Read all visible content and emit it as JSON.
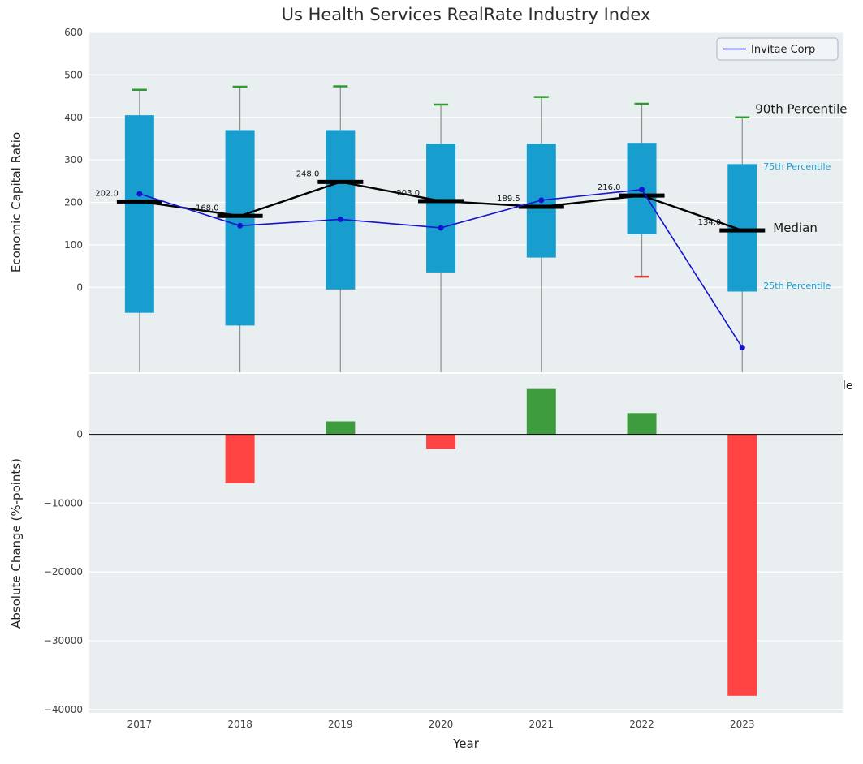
{
  "title": "Us Health Services RealRate Industry Index",
  "legend": {
    "label": "Invitae Corp"
  },
  "partial_text": "le",
  "colors": {
    "panel_bg": "#e9eef1",
    "grid": "#ffffff",
    "box_fill": "#189dcf",
    "whisker": "#8f8f8f",
    "cap_high": "#2e9b2e",
    "cap_low": "#e23b3b",
    "median": "#000000",
    "line": "#1414cc",
    "bar_pos": "#3e9c3e",
    "bar_neg": "#ff4242",
    "tick_text": "#404040",
    "annot_blue": "#1a9fd1",
    "annot_black": "#1a1a1a"
  },
  "chart_data": [
    {
      "type": "boxplot+line",
      "title": "Us Health Services RealRate Industry Index",
      "ylabel": "Economic Capital Ratio",
      "x": [
        2017,
        2018,
        2019,
        2020,
        2021,
        2022,
        2023
      ],
      "xlim": [
        2016.5,
        2024.0
      ],
      "ylim": [
        -200,
        600
      ],
      "yticks": [
        "600",
        "500",
        "400",
        "300",
        "200",
        "100",
        "0"
      ],
      "ytick_values": [
        600,
        500,
        400,
        300,
        200,
        100,
        0
      ],
      "boxes": [
        {
          "year": 2017,
          "p25": -60,
          "p75": 405,
          "median": 202.0,
          "p90": 465,
          "p10": null,
          "label": "202.0"
        },
        {
          "year": 2018,
          "p25": -90,
          "p75": 370,
          "median": 168.0,
          "p90": 472,
          "p10": null,
          "label": "168.0"
        },
        {
          "year": 2019,
          "p25": -5,
          "p75": 370,
          "median": 248.0,
          "p90": 473,
          "p10": null,
          "label": "248.0"
        },
        {
          "year": 2020,
          "p25": 35,
          "p75": 338,
          "median": 203.0,
          "p90": 430,
          "p10": null,
          "label": "203.0"
        },
        {
          "year": 2021,
          "p25": 70,
          "p75": 338,
          "median": 189.5,
          "p90": 448,
          "p10": null,
          "label": "189.5"
        },
        {
          "year": 2022,
          "p25": 125,
          "p75": 340,
          "median": 216.0,
          "p90": 432,
          "p10": 25,
          "label": "216.0"
        },
        {
          "year": 2023,
          "p25": -10,
          "p75": 290,
          "median": 134.0,
          "p90": 400,
          "p10": null,
          "label": "134.0"
        }
      ],
      "series": [
        {
          "name": "Invitae Corp",
          "values": [
            220,
            145,
            160,
            140,
            205,
            230,
            -142
          ]
        }
      ],
      "annotations": [
        {
          "text": "90th Percentile",
          "value": 420,
          "color": "#1a1a1a",
          "size": 15,
          "dx": 16
        },
        {
          "text": "75th Percentile",
          "value": 287,
          "color": "#1a9fd1",
          "size": 11,
          "dx": 26
        },
        {
          "text": "Median",
          "value": 140,
          "color": "#1a1a1a",
          "size": 15,
          "dx": 38
        },
        {
          "text": "25th Percentile",
          "value": 6,
          "color": "#1a9fd1",
          "size": 11,
          "dx": 26
        }
      ],
      "legend": [
        "Invitae Corp"
      ],
      "legend_position": "upper right"
    },
    {
      "type": "bar",
      "ylabel": "Absolute Change (%-points)",
      "xlabel": "Year",
      "categories": [
        "2017",
        "2018",
        "2019",
        "2020",
        "2021",
        "2022",
        "2023"
      ],
      "values": [
        0,
        -7100,
        1900,
        -2100,
        6600,
        3100,
        -38000
      ],
      "ylim": [
        -40500,
        8800
      ],
      "yticks": [
        "0",
        "−10000",
        "−20000",
        "−30000",
        "−40000"
      ],
      "ytick_values": [
        0,
        -10000,
        -20000,
        -30000,
        -40000
      ]
    }
  ]
}
